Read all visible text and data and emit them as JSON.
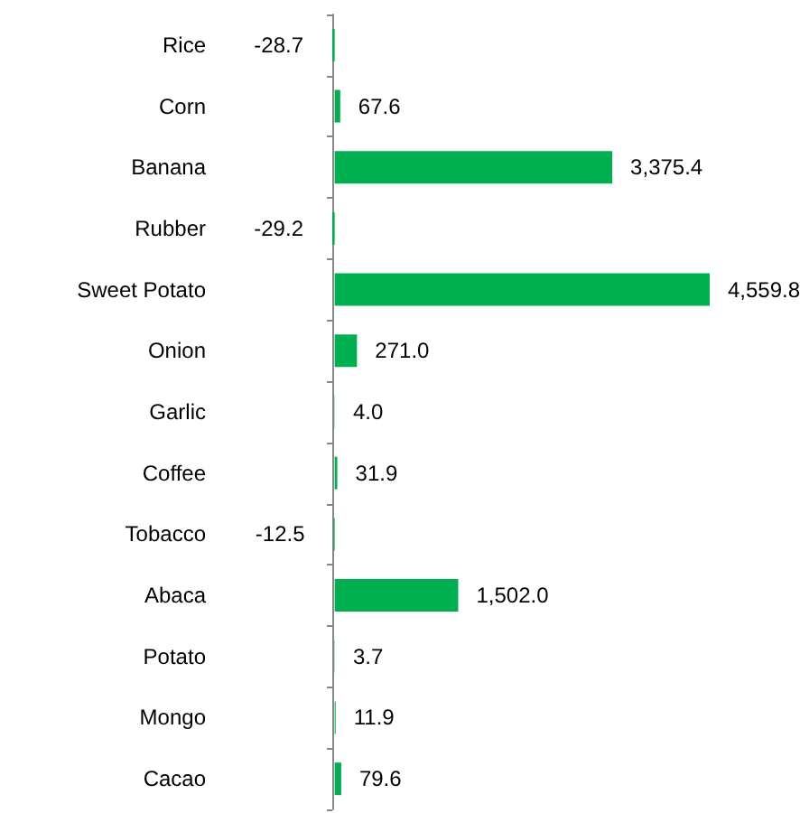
{
  "chart_data": {
    "type": "bar",
    "orientation": "horizontal",
    "categories": [
      "Rice",
      "Corn",
      "Banana",
      "Rubber",
      "Sweet Potato",
      "Onion",
      "Garlic",
      "Coffee",
      "Tobacco",
      "Abaca",
      "Potato",
      "Mongo",
      "Cacao"
    ],
    "values": [
      -28.7,
      67.6,
      3375.4,
      -29.2,
      4559.8,
      271.0,
      4.0,
      31.9,
      -12.5,
      1502.0,
      3.7,
      11.9,
      79.6
    ],
    "value_labels": [
      "-28.7",
      "67.6",
      "3,375.4",
      "-29.2",
      "4,559.8",
      "271.0",
      "4.0",
      "31.9",
      "-12.5",
      "1,502.0",
      "3.7",
      "11.9",
      "79.6"
    ],
    "color": "#00b050"
  }
}
